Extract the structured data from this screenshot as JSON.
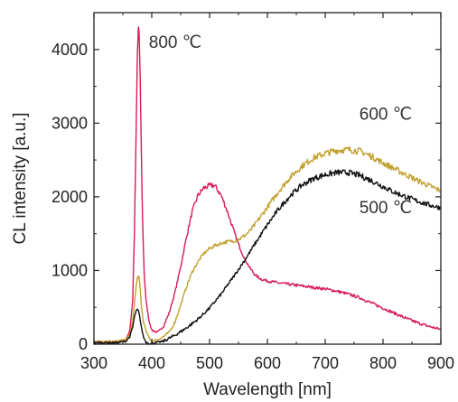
{
  "chart_data": {
    "type": "line",
    "title": "",
    "xlabel": "Wavelength [nm]",
    "ylabel": "CL intensity [a.u.]",
    "xlim": [
      300,
      900
    ],
    "ylim": [
      0,
      4500
    ],
    "xticks": [
      300,
      400,
      500,
      600,
      700,
      800,
      900
    ],
    "yticks": [
      0,
      1000,
      2000,
      3000,
      4000
    ],
    "xtick_labels": [
      "300",
      "400",
      "500",
      "600",
      "700",
      "800",
      "900"
    ],
    "ytick_labels": [
      "0",
      "1000",
      "2000",
      "3000",
      "4000"
    ],
    "grid": false,
    "legend": "none",
    "series": [
      {
        "name": "800 ℃",
        "color": "#d81b55",
        "x": [
          300,
          320,
          340,
          355,
          362,
          367,
          370,
          373,
          375,
          377,
          378,
          380,
          382,
          384,
          387,
          390,
          395,
          400,
          410,
          420,
          430,
          440,
          450,
          460,
          470,
          480,
          490,
          500,
          505,
          510,
          520,
          530,
          540,
          550,
          560,
          570,
          580,
          590,
          600,
          620,
          640,
          660,
          680,
          700,
          720,
          740,
          760,
          780,
          800,
          820,
          840,
          860,
          880,
          900
        ],
        "values": [
          30,
          30,
          30,
          60,
          180,
          600,
          1500,
          2900,
          3900,
          4300,
          4250,
          3600,
          2600,
          1700,
          950,
          600,
          330,
          190,
          160,
          240,
          420,
          700,
          1050,
          1450,
          1800,
          2020,
          2120,
          2150,
          2160,
          2140,
          2020,
          1820,
          1580,
          1360,
          1170,
          1030,
          930,
          880,
          860,
          830,
          810,
          790,
          770,
          750,
          720,
          680,
          630,
          560,
          490,
          420,
          350,
          290,
          240,
          200
        ]
      },
      {
        "name": "600 ℃",
        "color": "#c2a02f",
        "x": [
          300,
          320,
          340,
          355,
          362,
          367,
          370,
          373,
          375,
          377,
          378,
          380,
          382,
          385,
          390,
          395,
          400,
          410,
          420,
          430,
          440,
          450,
          460,
          470,
          480,
          490,
          500,
          510,
          520,
          530,
          540,
          550,
          560,
          570,
          580,
          600,
          620,
          640,
          660,
          680,
          700,
          720,
          740,
          760,
          780,
          800,
          820,
          840,
          860,
          880,
          900
        ],
        "values": [
          40,
          40,
          40,
          60,
          130,
          300,
          550,
          780,
          900,
          920,
          900,
          750,
          520,
          330,
          180,
          90,
          40,
          60,
          100,
          160,
          300,
          530,
          780,
          980,
          1120,
          1230,
          1300,
          1340,
          1370,
          1390,
          1400,
          1420,
          1470,
          1540,
          1640,
          1860,
          2080,
          2270,
          2420,
          2530,
          2590,
          2630,
          2640,
          2620,
          2550,
          2460,
          2380,
          2300,
          2220,
          2150,
          2080
        ]
      },
      {
        "name": "500 ℃",
        "color": "#111111",
        "x": [
          300,
          320,
          340,
          355,
          362,
          367,
          370,
          373,
          375,
          377,
          378,
          380,
          383,
          386,
          390,
          395,
          400,
          420,
          440,
          460,
          480,
          500,
          520,
          540,
          560,
          580,
          600,
          620,
          640,
          660,
          680,
          700,
          720,
          740,
          760,
          780,
          800,
          820,
          840,
          860,
          880,
          900
        ],
        "values": [
          20,
          20,
          20,
          40,
          100,
          230,
          370,
          450,
          470,
          450,
          420,
          330,
          190,
          90,
          30,
          10,
          10,
          40,
          120,
          220,
          340,
          490,
          680,
          900,
          1130,
          1380,
          1620,
          1840,
          2020,
          2160,
          2250,
          2300,
          2330,
          2330,
          2290,
          2220,
          2140,
          2060,
          2000,
          1940,
          1890,
          1850
        ]
      }
    ],
    "annotations": [
      {
        "text": "800 ℃",
        "x": 395,
        "y": 4020
      },
      {
        "text": "600 ℃",
        "x": 759,
        "y": 3050
      },
      {
        "text": "500 ℃",
        "x": 759,
        "y": 1780
      }
    ]
  }
}
